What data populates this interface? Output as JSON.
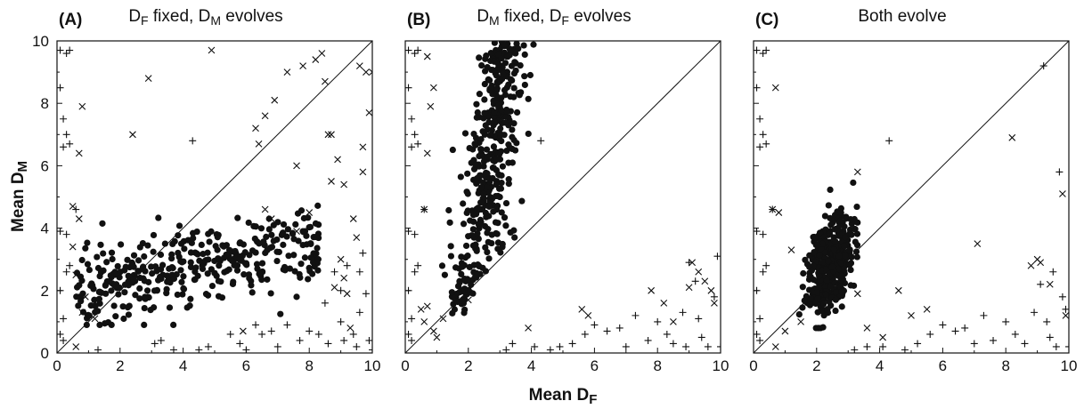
{
  "figure": {
    "xlabel": {
      "main": "Mean D",
      "sub": "F"
    },
    "ylabel": {
      "main": "Mean D",
      "sub": "M"
    }
  },
  "chart_data": [
    {
      "type": "scatter",
      "panel_label": "(A)",
      "title": "D_F fixed, D_M evolves",
      "title_parts": [
        {
          "main": "D",
          "sub": "F"
        },
        {
          "main": " fixed, D",
          "sub": "M"
        },
        {
          "main": " evolves",
          "sub": ""
        }
      ],
      "xlim": [
        0,
        10
      ],
      "ylim": [
        0,
        10
      ],
      "xticks": [
        0,
        2,
        4,
        6,
        8,
        10
      ],
      "yticks": [
        0,
        2,
        4,
        6,
        8,
        10
      ],
      "show_ytick_labels": true,
      "diagonal": true,
      "dot_cluster": {
        "n": 380,
        "x_range": [
          0.6,
          8.3
        ],
        "y_center_at_x": [
          [
            0.6,
            2.0
          ],
          [
            8.3,
            3.6
          ]
        ],
        "y_spread": 0.75
      },
      "series": [
        {
          "marker": "plus",
          "points": [
            [
              0.1,
              9.7
            ],
            [
              0.3,
              9.6
            ],
            [
              0.4,
              9.7
            ],
            [
              0.1,
              8.5
            ],
            [
              0.2,
              7.5
            ],
            [
              0.3,
              7.0
            ],
            [
              0.2,
              6.6
            ],
            [
              0.4,
              6.7
            ],
            [
              0.1,
              3.9
            ],
            [
              0.3,
              3.8
            ],
            [
              0.4,
              2.8
            ],
            [
              0.3,
              2.6
            ],
            [
              0.1,
              2.0
            ],
            [
              0.2,
              1.1
            ],
            [
              0.1,
              0.6
            ],
            [
              0.2,
              0.4
            ],
            [
              0.6,
              4.6
            ],
            [
              1.3,
              0.1
            ],
            [
              3.1,
              0.3
            ],
            [
              3.3,
              0.4
            ],
            [
              4.3,
              6.8
            ],
            [
              3.7,
              0.1
            ],
            [
              4.5,
              0.1
            ],
            [
              4.8,
              0.2
            ],
            [
              5.5,
              0.6
            ],
            [
              5.8,
              0.3
            ],
            [
              6.0,
              0.1
            ],
            [
              6.3,
              0.9
            ],
            [
              6.5,
              0.6
            ],
            [
              6.8,
              0.7
            ],
            [
              7.0,
              0.2
            ],
            [
              7.3,
              0.9
            ],
            [
              7.7,
              0.4
            ],
            [
              8.0,
              0.7
            ],
            [
              8.3,
              0.6
            ],
            [
              8.5,
              1.6
            ],
            [
              8.6,
              0.3
            ],
            [
              8.8,
              2.6
            ],
            [
              9.0,
              2.0
            ],
            [
              9.0,
              1.0
            ],
            [
              9.1,
              0.4
            ],
            [
              9.2,
              2.8
            ],
            [
              9.4,
              0.6
            ],
            [
              9.5,
              0.2
            ],
            [
              9.6,
              2.6
            ],
            [
              9.6,
              1.3
            ],
            [
              9.7,
              3.2
            ],
            [
              9.8,
              1.9
            ],
            [
              9.9,
              0.4
            ],
            [
              10.0,
              0.1
            ]
          ]
        },
        {
          "marker": "cross",
          "points": [
            [
              0.7,
              6.4
            ],
            [
              0.5,
              4.7
            ],
            [
              0.7,
              4.3
            ],
            [
              0.8,
              7.9
            ],
            [
              0.5,
              3.4
            ],
            [
              0.6,
              2.5
            ],
            [
              0.9,
              1.8
            ],
            [
              0.8,
              1.3
            ],
            [
              1.2,
              1.1
            ],
            [
              0.6,
              0.2
            ],
            [
              2.4,
              7.0
            ],
            [
              2.9,
              8.8
            ],
            [
              4.9,
              9.7
            ],
            [
              5.9,
              0.7
            ],
            [
              6.3,
              7.2
            ],
            [
              6.4,
              6.7
            ],
            [
              6.6,
              7.6
            ],
            [
              6.6,
              4.6
            ],
            [
              6.8,
              4.3
            ],
            [
              6.9,
              8.1
            ],
            [
              7.3,
              9.0
            ],
            [
              7.6,
              6.0
            ],
            [
              7.6,
              3.9
            ],
            [
              7.8,
              9.2
            ],
            [
              8.0,
              4.5
            ],
            [
              8.2,
              9.4
            ],
            [
              8.4,
              9.6
            ],
            [
              8.5,
              8.7
            ],
            [
              8.6,
              7.0
            ],
            [
              8.7,
              7.0
            ],
            [
              8.7,
              5.5
            ],
            [
              8.8,
              2.1
            ],
            [
              8.9,
              6.2
            ],
            [
              9.0,
              3.0
            ],
            [
              9.1,
              2.4
            ],
            [
              9.1,
              5.4
            ],
            [
              9.2,
              1.9
            ],
            [
              9.3,
              0.8
            ],
            [
              9.4,
              4.3
            ],
            [
              9.6,
              9.2
            ],
            [
              9.7,
              6.6
            ],
            [
              9.7,
              5.8
            ],
            [
              9.8,
              9.0
            ],
            [
              9.9,
              7.7
            ],
            [
              10.0,
              9.0
            ],
            [
              9.5,
              3.7
            ]
          ]
        }
      ]
    },
    {
      "type": "scatter",
      "panel_label": "(B)",
      "title": "D_M fixed, D_F evolves",
      "title_parts": [
        {
          "main": "D",
          "sub": "M"
        },
        {
          "main": " fixed, D",
          "sub": "F"
        },
        {
          "main": " evolves",
          "sub": ""
        }
      ],
      "xlim": [
        0,
        10
      ],
      "ylim": [
        0,
        10
      ],
      "xticks": [
        0,
        2,
        4,
        6,
        8,
        10
      ],
      "yticks": [
        0,
        2,
        4,
        6,
        8,
        10
      ],
      "show_ytick_labels": false,
      "diagonal": true,
      "dot_cluster": {
        "n": 420,
        "y_range": [
          1.2,
          10.0
        ],
        "x_center_at_y": [
          [
            1.2,
            1.6
          ],
          [
            3.5,
            2.4
          ],
          [
            10.0,
            3.2
          ]
        ],
        "x_spread": 0.42
      },
      "series": [
        {
          "marker": "plus",
          "points": [
            [
              0.1,
              9.7
            ],
            [
              0.3,
              9.6
            ],
            [
              0.4,
              9.7
            ],
            [
              0.1,
              8.5
            ],
            [
              0.2,
              7.5
            ],
            [
              0.3,
              7.0
            ],
            [
              0.2,
              6.6
            ],
            [
              0.4,
              6.7
            ],
            [
              0.1,
              3.9
            ],
            [
              0.3,
              3.8
            ],
            [
              0.4,
              2.8
            ],
            [
              0.3,
              2.6
            ],
            [
              0.1,
              2.0
            ],
            [
              0.2,
              1.1
            ],
            [
              0.1,
              0.6
            ],
            [
              0.2,
              0.4
            ],
            [
              0.6,
              4.6
            ],
            [
              3.2,
              0.1
            ],
            [
              3.4,
              0.3
            ],
            [
              4.3,
              6.8
            ],
            [
              4.1,
              0.2
            ],
            [
              4.6,
              0.1
            ],
            [
              4.9,
              0.2
            ],
            [
              5.3,
              0.3
            ],
            [
              5.7,
              0.6
            ],
            [
              6.0,
              0.9
            ],
            [
              6.4,
              0.7
            ],
            [
              6.8,
              0.8
            ],
            [
              7.0,
              0.2
            ],
            [
              7.3,
              1.2
            ],
            [
              7.7,
              0.4
            ],
            [
              8.0,
              1.0
            ],
            [
              8.3,
              0.6
            ],
            [
              8.5,
              0.3
            ],
            [
              8.8,
              1.3
            ],
            [
              9.0,
              2.9
            ],
            [
              9.2,
              2.3
            ],
            [
              9.3,
              1.1
            ],
            [
              9.4,
              0.5
            ],
            [
              9.6,
              0.2
            ],
            [
              9.8,
              1.8
            ],
            [
              9.9,
              3.1
            ],
            [
              10.0,
              0.2
            ],
            [
              8.9,
              0.2
            ]
          ]
        },
        {
          "marker": "cross",
          "points": [
            [
              0.7,
              6.4
            ],
            [
              0.6,
              4.6
            ],
            [
              0.7,
              9.5
            ],
            [
              0.9,
              8.5
            ],
            [
              0.8,
              7.9
            ],
            [
              0.5,
              1.4
            ],
            [
              0.6,
              1.0
            ],
            [
              0.9,
              0.7
            ],
            [
              1.0,
              0.5
            ],
            [
              0.7,
              1.5
            ],
            [
              1.2,
              1.1
            ],
            [
              2.0,
              1.7
            ],
            [
              3.9,
              0.8
            ],
            [
              5.6,
              1.4
            ],
            [
              5.8,
              1.2
            ],
            [
              7.8,
              2.0
            ],
            [
              8.2,
              1.6
            ],
            [
              8.5,
              1.0
            ],
            [
              9.0,
              2.1
            ],
            [
              9.1,
              2.9
            ],
            [
              9.3,
              2.6
            ],
            [
              9.5,
              2.3
            ],
            [
              9.7,
              2.0
            ],
            [
              9.8,
              1.6
            ]
          ]
        }
      ]
    },
    {
      "type": "scatter",
      "panel_label": "(C)",
      "title": "Both evolve",
      "title_parts": [
        {
          "main": "Both evolve",
          "sub": ""
        }
      ],
      "xlim": [
        0,
        10
      ],
      "ylim": [
        0,
        10
      ],
      "xticks": [
        0,
        2,
        4,
        6,
        8,
        10
      ],
      "yticks": [
        0,
        2,
        4,
        6,
        8,
        10
      ],
      "show_ytick_labels": false,
      "diagonal": true,
      "dot_cluster": {
        "n": 420,
        "x_mean": 2.45,
        "y_mean": 2.8,
        "x_sd": 0.38,
        "y_sd": 0.85,
        "corr": 0.45
      },
      "series": [
        {
          "marker": "plus",
          "points": [
            [
              0.1,
              9.7
            ],
            [
              0.3,
              9.6
            ],
            [
              0.4,
              9.7
            ],
            [
              0.1,
              8.5
            ],
            [
              0.2,
              7.5
            ],
            [
              0.3,
              7.0
            ],
            [
              0.2,
              6.6
            ],
            [
              0.4,
              6.7
            ],
            [
              0.1,
              3.9
            ],
            [
              0.3,
              3.8
            ],
            [
              0.4,
              2.8
            ],
            [
              0.3,
              2.6
            ],
            [
              0.1,
              2.0
            ],
            [
              0.2,
              1.1
            ],
            [
              0.1,
              0.6
            ],
            [
              0.2,
              0.4
            ],
            [
              0.6,
              4.6
            ],
            [
              3.2,
              0.1
            ],
            [
              3.6,
              0.2
            ],
            [
              4.3,
              6.8
            ],
            [
              4.1,
              0.2
            ],
            [
              4.8,
              0.1
            ],
            [
              5.2,
              0.3
            ],
            [
              5.6,
              0.6
            ],
            [
              6.0,
              0.9
            ],
            [
              6.4,
              0.7
            ],
            [
              6.7,
              0.8
            ],
            [
              7.0,
              0.3
            ],
            [
              7.3,
              1.2
            ],
            [
              7.6,
              0.4
            ],
            [
              8.0,
              1.0
            ],
            [
              8.3,
              0.6
            ],
            [
              8.6,
              0.3
            ],
            [
              8.9,
              1.3
            ],
            [
              9.1,
              2.2
            ],
            [
              9.2,
              9.2
            ],
            [
              9.3,
              1.0
            ],
            [
              9.4,
              0.5
            ],
            [
              9.5,
              2.6
            ],
            [
              9.6,
              0.2
            ],
            [
              9.7,
              5.8
            ],
            [
              9.8,
              1.8
            ],
            [
              9.9,
              1.4
            ],
            [
              10.0,
              0.2
            ]
          ]
        },
        {
          "marker": "cross",
          "points": [
            [
              0.7,
              8.5
            ],
            [
              0.6,
              4.6
            ],
            [
              0.8,
              4.5
            ],
            [
              1.2,
              3.3
            ],
            [
              1.5,
              1.0
            ],
            [
              1.0,
              0.7
            ],
            [
              0.7,
              0.2
            ],
            [
              3.3,
              5.8
            ],
            [
              3.3,
              1.9
            ],
            [
              3.6,
              0.8
            ],
            [
              4.1,
              0.5
            ],
            [
              4.6,
              2.0
            ],
            [
              5.0,
              1.2
            ],
            [
              5.5,
              1.4
            ],
            [
              7.1,
              3.5
            ],
            [
              8.2,
              6.9
            ],
            [
              8.8,
              2.8
            ],
            [
              9.0,
              3.0
            ],
            [
              9.1,
              2.9
            ],
            [
              9.4,
              2.2
            ],
            [
              9.8,
              5.1
            ],
            [
              9.9,
              1.2
            ]
          ]
        }
      ]
    }
  ]
}
